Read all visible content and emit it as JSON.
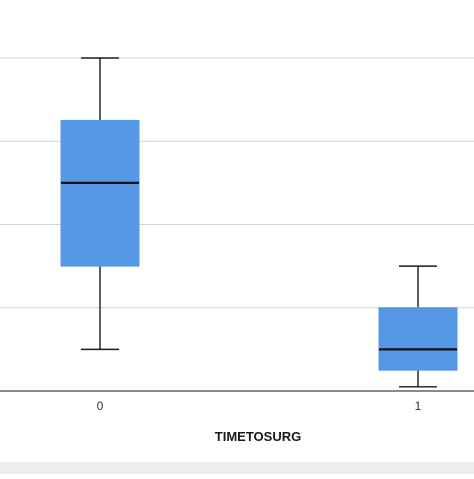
{
  "chart_data": {
    "type": "box",
    "xlabel": "TIMETOSURG",
    "categories": [
      "0",
      "1"
    ],
    "ylim": [
      0,
      4
    ],
    "gridlines": [
      1,
      2,
      3,
      4
    ],
    "grid": true,
    "box_color": "#5599e6",
    "boxes": [
      {
        "category": "0",
        "min": 0.5,
        "q1": 1.5,
        "median": 2.5,
        "q3": 3.25,
        "max": 4.0
      },
      {
        "category": "1",
        "min": 0.05,
        "q1": 0.25,
        "median": 0.5,
        "q3": 1.0,
        "max": 1.5
      }
    ]
  }
}
